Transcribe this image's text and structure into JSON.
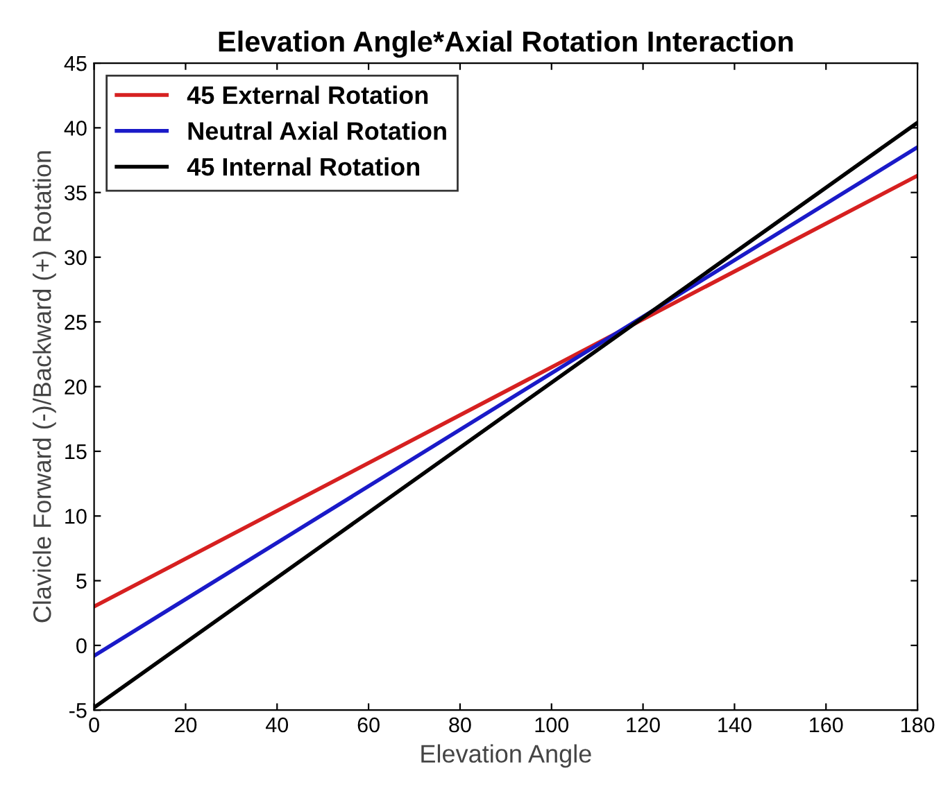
{
  "chart_data": {
    "type": "line",
    "title": "Elevation Angle*Axial Rotation Interaction",
    "xlabel": "Elevation Angle",
    "ylabel": "Clavicle Forward (-)/Backward (+) Rotation",
    "x": [
      0,
      180
    ],
    "series": [
      {
        "name": "45 External Rotation",
        "color": "#d62020",
        "values": [
          3.0,
          36.3
        ]
      },
      {
        "name": "Neutral Axial Rotation",
        "color": "#1a1ac8",
        "values": [
          -0.8,
          38.5
        ]
      },
      {
        "name": "45 Internal Rotation",
        "color": "#000000",
        "values": [
          -4.8,
          40.4
        ]
      }
    ],
    "xlim": [
      0,
      180
    ],
    "xticks": [
      0,
      20,
      40,
      60,
      80,
      100,
      120,
      140,
      160,
      180
    ],
    "ylim": [
      -5,
      45
    ],
    "yticks": [
      -5,
      0,
      5,
      10,
      15,
      20,
      25,
      30,
      35,
      40,
      45
    ],
    "legend": "top left",
    "grid": false
  }
}
